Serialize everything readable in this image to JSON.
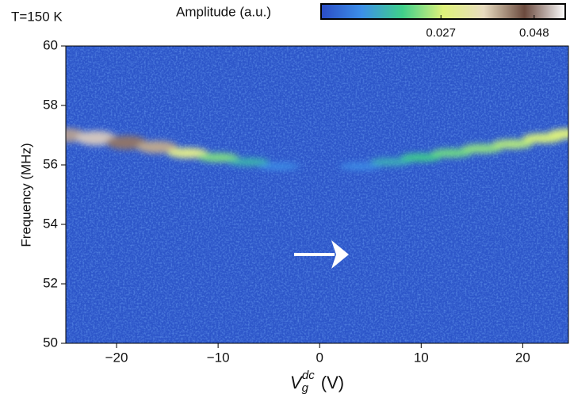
{
  "chart_data": {
    "type": "heatmap",
    "title": "T=150 K",
    "x_label": {
      "symbol": "V",
      "sub": "g",
      "sup": "dc",
      "unit": "(V)"
    },
    "y_label": "Frequency (MHz)",
    "xlim": [
      -25,
      24.5
    ],
    "ylim": [
      50,
      60
    ],
    "xticks": [
      {
        "value": -20,
        "label": "−20"
      },
      {
        "value": -10,
        "label": "−10"
      },
      0,
      10,
      20
    ],
    "yticks": [
      50,
      52,
      54,
      56,
      58,
      60
    ],
    "background_color": "#2d56c9",
    "colorbar": {
      "label": "Amplitude (a.u.)",
      "clim": [
        0,
        0.055
      ],
      "ticks": [
        0.027,
        0.048
      ],
      "colormap": [
        "#2a4cc6",
        "#3c8fe8",
        "#3fd08a",
        "#dff27a",
        "#e8dcc0",
        "#6b4a3e",
        "#ffffff"
      ]
    },
    "ridge": {
      "x": [
        -25,
        -22,
        -19,
        -16,
        -13,
        -10,
        -7,
        -4,
        4,
        7,
        10,
        13,
        16,
        19,
        22,
        24.5
      ],
      "frequency": [
        57.0,
        56.9,
        56.75,
        56.6,
        56.4,
        56.25,
        56.1,
        55.95,
        55.95,
        56.1,
        56.25,
        56.4,
        56.55,
        56.7,
        56.9,
        57.05
      ],
      "amplitude": [
        0.05,
        0.052,
        0.048,
        0.04,
        0.03,
        0.022,
        0.015,
        0.009,
        0.009,
        0.014,
        0.018,
        0.021,
        0.023,
        0.025,
        0.027,
        0.028
      ]
    }
  }
}
